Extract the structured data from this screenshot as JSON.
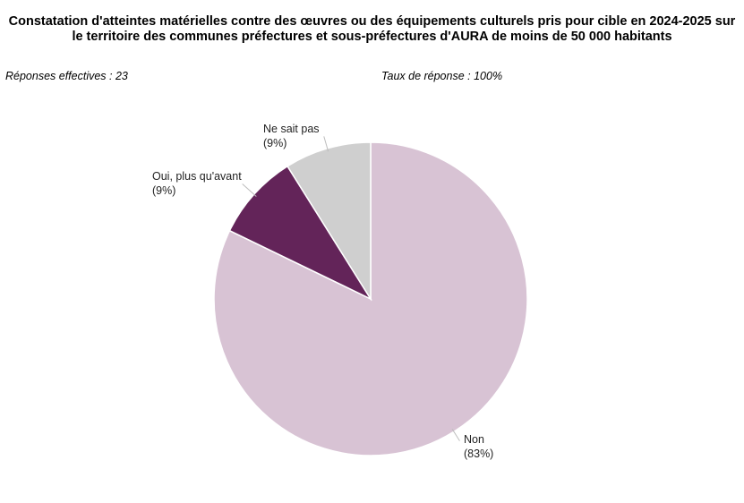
{
  "header": {
    "title_line1": "Constatation d'atteintes matérielles contre des œuvres ou des équipements culturels pris pour cible en 2024-2025 sur",
    "title_line2": "le territoire des communes préfectures et sous-préfectures d'AURA de moins de 50 000 habitants"
  },
  "meta": {
    "responses": "Réponses effectives : 23",
    "rate": "Taux de réponse : 100%"
  },
  "chart_data": {
    "type": "pie",
    "title": "Constatation d'atteintes matérielles contre des œuvres ou des équipements culturels pris pour cible en 2024-2025 sur le territoire des communes préfectures et sous-préfectures d'AURA de moins de 50 000 habitants",
    "start": "12 o'clock",
    "direction": "clockwise",
    "slices": [
      {
        "label": "Non",
        "percent_label": "(83%)",
        "value": 83,
        "color": "#d8c3d4"
      },
      {
        "label": "Oui, plus qu'avant",
        "percent_label": "(9%)",
        "value": 9,
        "color": "#632459"
      },
      {
        "label": "Ne sait pas",
        "percent_label": "(9%)",
        "value": 9,
        "color": "#cfcfcf"
      }
    ]
  }
}
